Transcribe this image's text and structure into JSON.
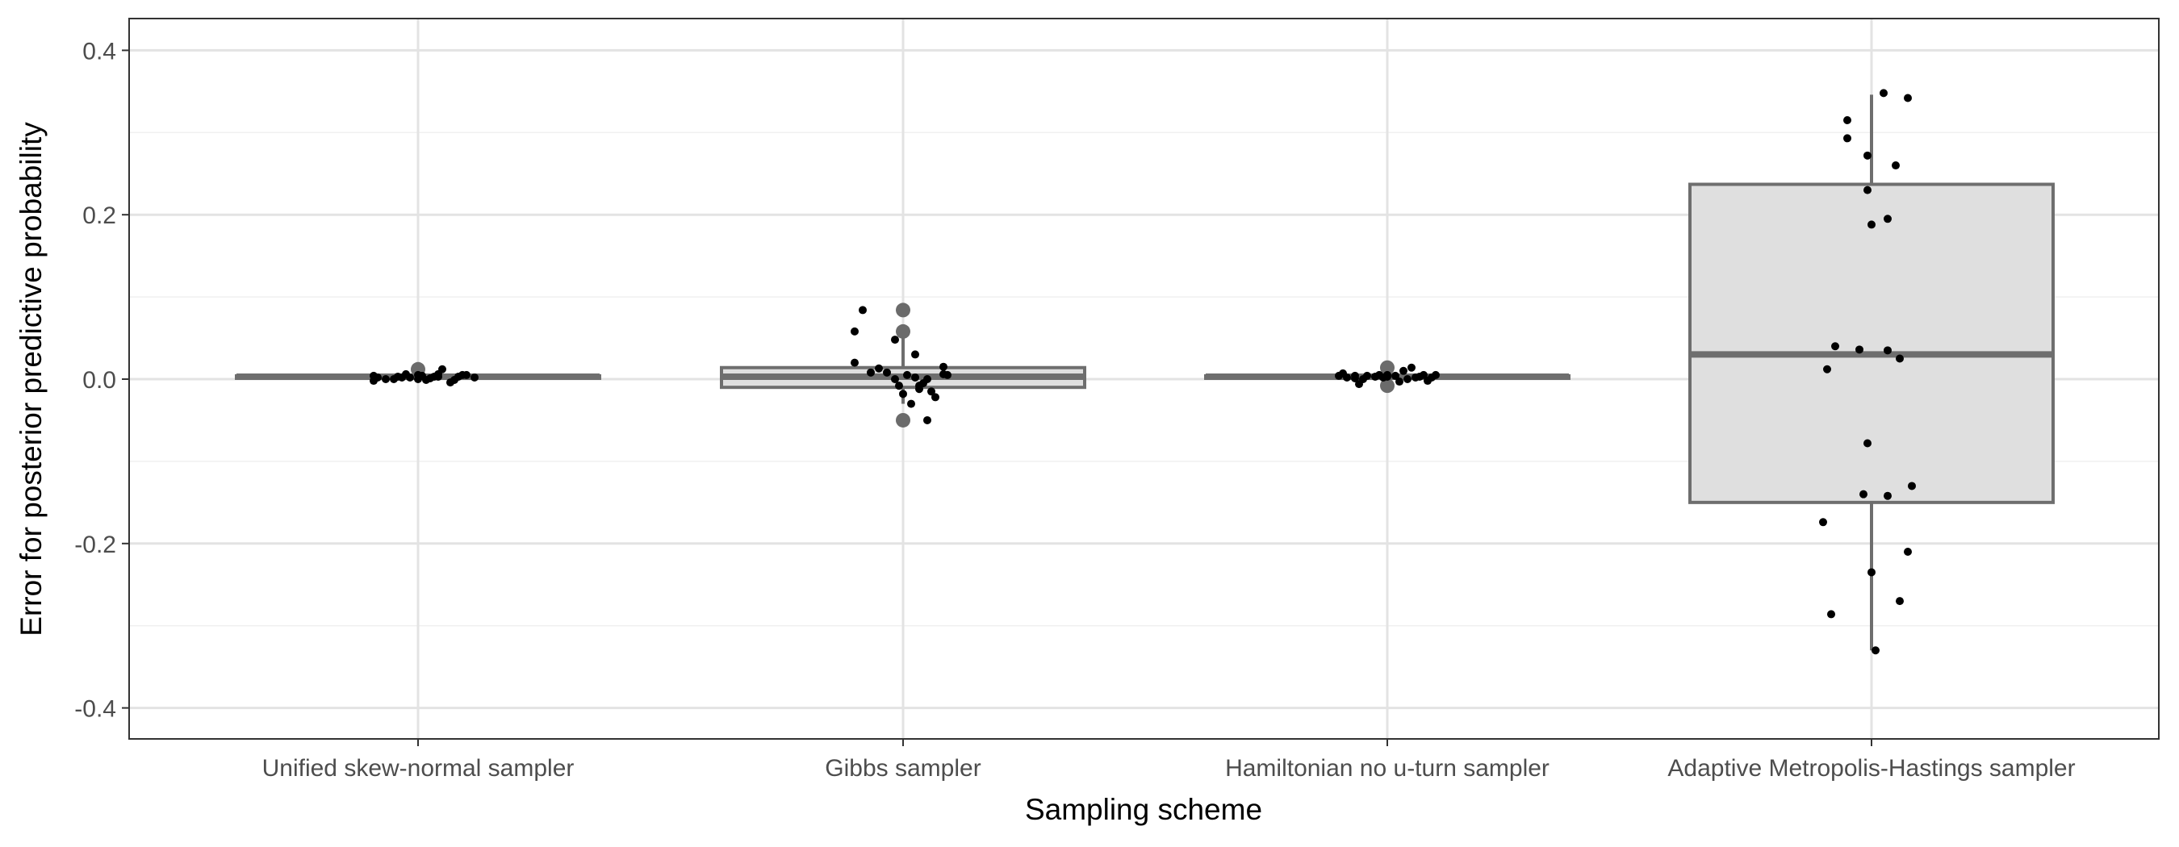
{
  "chart_data": {
    "type": "box",
    "title": "",
    "xlabel": "Sampling scheme",
    "ylabel": "Error for posterior predictive probability",
    "ylim": [
      -0.44,
      0.44
    ],
    "y_ticks": [
      -0.4,
      -0.2,
      0.0,
      0.2,
      0.4
    ],
    "y_tick_labels": [
      "-0.4",
      "-0.2",
      "0.0",
      "0.2",
      "0.4"
    ],
    "grid": true,
    "theme": "bw",
    "box_fill": "#dfdfdf",
    "box_stroke": "#6e6e6e",
    "point_color": "#000000",
    "outlier_color": "#6b6b6b",
    "categories": [
      "Unified skew-normal sampler",
      "Gibbs sampler",
      "Hamiltonian no u-turn sampler",
      "Adaptive Metropolis-Hastings sampler"
    ],
    "boxes": [
      {
        "q1": 0.001,
        "median": 0.003,
        "q3": 0.004,
        "whisker_low": 0.001,
        "whisker_high": 0.005,
        "outliers": [
          0.012
        ]
      },
      {
        "q1": -0.01,
        "median": 0.003,
        "q3": 0.014,
        "whisker_low": -0.03,
        "whisker_high": 0.05,
        "outliers": [
          0.084,
          0.058,
          -0.05
        ]
      },
      {
        "q1": 0.001,
        "median": 0.003,
        "q3": 0.004,
        "whisker_low": 0.0,
        "whisker_high": 0.006,
        "outliers": [
          0.014,
          -0.008
        ]
      },
      {
        "q1": -0.15,
        "median": 0.03,
        "q3": 0.237,
        "whisker_low": -0.33,
        "whisker_high": 0.346,
        "outliers": []
      }
    ],
    "jitter": [
      {
        "x": [
          -0.11,
          -0.11,
          -0.1,
          -0.08,
          -0.06,
          -0.05,
          -0.03,
          -0.02,
          0.0,
          0.01,
          0.02,
          0.03,
          0.04,
          0.05,
          0.06,
          0.08,
          0.09,
          0.1,
          0.11,
          0.12,
          0.14,
          0.05,
          0.0,
          -0.04
        ],
        "y": [
          0.004,
          -0.002,
          0.002,
          0.0,
          0.0,
          0.003,
          0.006,
          0.002,
          0.005,
          0.004,
          -0.001,
          0.001,
          0.003,
          0.006,
          0.012,
          -0.004,
          -0.001,
          0.003,
          0.005,
          0.005,
          0.002,
          0.003,
          0.0,
          0.002
        ]
      },
      {
        "x": [
          -0.12,
          -0.1,
          -0.12,
          -0.08,
          -0.06,
          -0.04,
          -0.02,
          -0.01,
          0.0,
          0.01,
          0.03,
          0.04,
          0.05,
          0.06,
          0.06,
          0.07,
          0.08,
          0.1,
          0.1,
          0.11,
          0.02,
          -0.02,
          0.04,
          0.03
        ],
        "y": [
          0.058,
          0.084,
          0.02,
          0.008,
          0.013,
          0.008,
          0.048,
          -0.008,
          -0.018,
          0.005,
          0.03,
          -0.012,
          -0.005,
          0.0,
          -0.05,
          -0.015,
          -0.022,
          0.006,
          0.015,
          0.005,
          -0.03,
          0.0,
          -0.008,
          0.002
        ]
      },
      {
        "x": [
          -0.12,
          -0.11,
          -0.1,
          -0.08,
          -0.08,
          -0.07,
          -0.05,
          -0.03,
          -0.02,
          -0.01,
          0.0,
          0.02,
          0.03,
          0.04,
          0.05,
          0.06,
          0.07,
          0.08,
          0.09,
          0.1,
          0.11,
          0.12,
          -0.06,
          0.0
        ],
        "y": [
          0.004,
          0.007,
          0.002,
          0.001,
          0.004,
          -0.006,
          0.004,
          0.003,
          0.005,
          0.002,
          0.005,
          0.004,
          -0.003,
          0.01,
          0.0,
          0.014,
          0.002,
          0.003,
          0.005,
          -0.002,
          0.002,
          0.005,
          0.0,
          0.003
        ]
      },
      {
        "x": [
          -0.12,
          -0.11,
          -0.1,
          -0.09,
          -0.06,
          -0.06,
          -0.03,
          -0.02,
          -0.01,
          -0.01,
          -0.01,
          0.0,
          0.0,
          0.01,
          0.03,
          0.04,
          0.04,
          0.04,
          0.06,
          0.07,
          0.07,
          0.09,
          0.09,
          0.1
        ],
        "y": [
          -0.174,
          0.012,
          -0.286,
          0.04,
          0.293,
          0.315,
          0.036,
          -0.14,
          0.272,
          -0.078,
          0.23,
          0.188,
          -0.235,
          -0.33,
          0.348,
          -0.142,
          0.035,
          0.195,
          0.26,
          0.025,
          -0.27,
          -0.21,
          0.342,
          -0.13
        ]
      }
    ]
  }
}
